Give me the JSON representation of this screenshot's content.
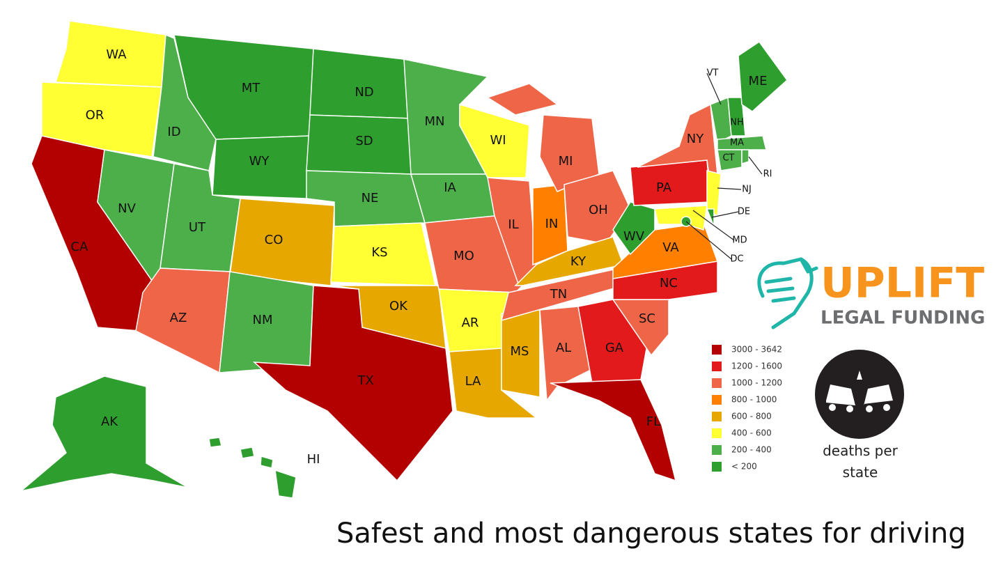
{
  "title": "Safest and most dangerous states for driving",
  "legend": [
    {
      "label": "3000 - 3642",
      "color": "#b30000"
    },
    {
      "label": "1200 - 1600",
      "color": "#e31a1c"
    },
    {
      "label": "1000 - 1200",
      "color": "#ef6548"
    },
    {
      "label": "800 - 1000",
      "color": "#ff7f00"
    },
    {
      "label": "600 - 800",
      "color": "#e6a800"
    },
    {
      "label": "400 - 600",
      "color": "#ffff33"
    },
    {
      "label": "200 - 400",
      "color": "#4daf4a"
    },
    {
      "label": "< 200",
      "color": "#2e9e2e"
    }
  ],
  "states": [
    {
      "label": "WA",
      "color": "#ffff33"
    },
    {
      "label": "OR",
      "color": "#ffff33"
    },
    {
      "label": "CA",
      "color": "#b30000"
    },
    {
      "label": "NV",
      "color": "#4daf4a"
    },
    {
      "label": "ID",
      "color": "#4daf4a"
    },
    {
      "label": "MT",
      "color": "#2e9e2e"
    },
    {
      "label": "WY",
      "color": "#2e9e2e"
    },
    {
      "label": "UT",
      "color": "#4daf4a"
    },
    {
      "label": "CO",
      "color": "#e6a800"
    },
    {
      "label": "AZ",
      "color": "#ef6548"
    },
    {
      "label": "NM",
      "color": "#4daf4a"
    },
    {
      "label": "ND",
      "color": "#2e9e2e"
    },
    {
      "label": "SD",
      "color": "#2e9e2e"
    },
    {
      "label": "NE",
      "color": "#4daf4a"
    },
    {
      "label": "KS",
      "color": "#ffff33"
    },
    {
      "label": "OK",
      "color": "#e6a800"
    },
    {
      "label": "TX",
      "color": "#b30000"
    },
    {
      "label": "MN",
      "color": "#4daf4a"
    },
    {
      "label": "IA",
      "color": "#4daf4a"
    },
    {
      "label": "WI",
      "color": "#ffff33"
    },
    {
      "label": "MO",
      "color": "#ef6548"
    },
    {
      "label": "AR",
      "color": "#ffff33"
    },
    {
      "label": "LA",
      "color": "#e6a800"
    },
    {
      "label": "MS",
      "color": "#e6a800"
    },
    {
      "label": "IL",
      "color": "#ef6548"
    },
    {
      "label": "IN",
      "color": "#ff7f00"
    },
    {
      "label": "MI",
      "color": "#ef6548"
    },
    {
      "label": "OH",
      "color": "#ef6548"
    },
    {
      "label": "KY",
      "color": "#e6a800"
    },
    {
      "label": "TN",
      "color": "#ef6548"
    },
    {
      "label": "AL",
      "color": "#ef6548"
    },
    {
      "label": "GA",
      "color": "#e31a1c"
    },
    {
      "label": "FL",
      "color": "#b30000"
    },
    {
      "label": "SC",
      "color": "#ef6548"
    },
    {
      "label": "NC",
      "color": "#e31a1c"
    },
    {
      "label": "VA",
      "color": "#ff7f00"
    },
    {
      "label": "WV",
      "color": "#2e9e2e"
    },
    {
      "label": "PA",
      "color": "#e31a1c"
    },
    {
      "label": "NY",
      "color": "#ef6548"
    },
    {
      "label": "NJ",
      "color": "#ffff33"
    },
    {
      "label": "DE",
      "color": "#2e9e2e"
    },
    {
      "label": "MD",
      "color": "#ffff33"
    },
    {
      "label": "DC",
      "color": "#2e9e2e"
    },
    {
      "label": "VT",
      "color": "#4daf4a"
    },
    {
      "label": "NH",
      "color": "#2e9e2e"
    },
    {
      "label": "ME",
      "color": "#2e9e2e"
    },
    {
      "label": "MA",
      "color": "#4daf4a"
    },
    {
      "label": "CT",
      "color": "#4daf4a"
    },
    {
      "label": "RI",
      "color": "#4daf4a"
    },
    {
      "label": "AK",
      "color": "#2e9e2e"
    },
    {
      "label": "HI",
      "color": "#2e9e2e"
    }
  ],
  "logo": {
    "name": "UPLIFT",
    "tagline": "LEGAL FUNDING"
  },
  "caption": "deaths per state"
}
